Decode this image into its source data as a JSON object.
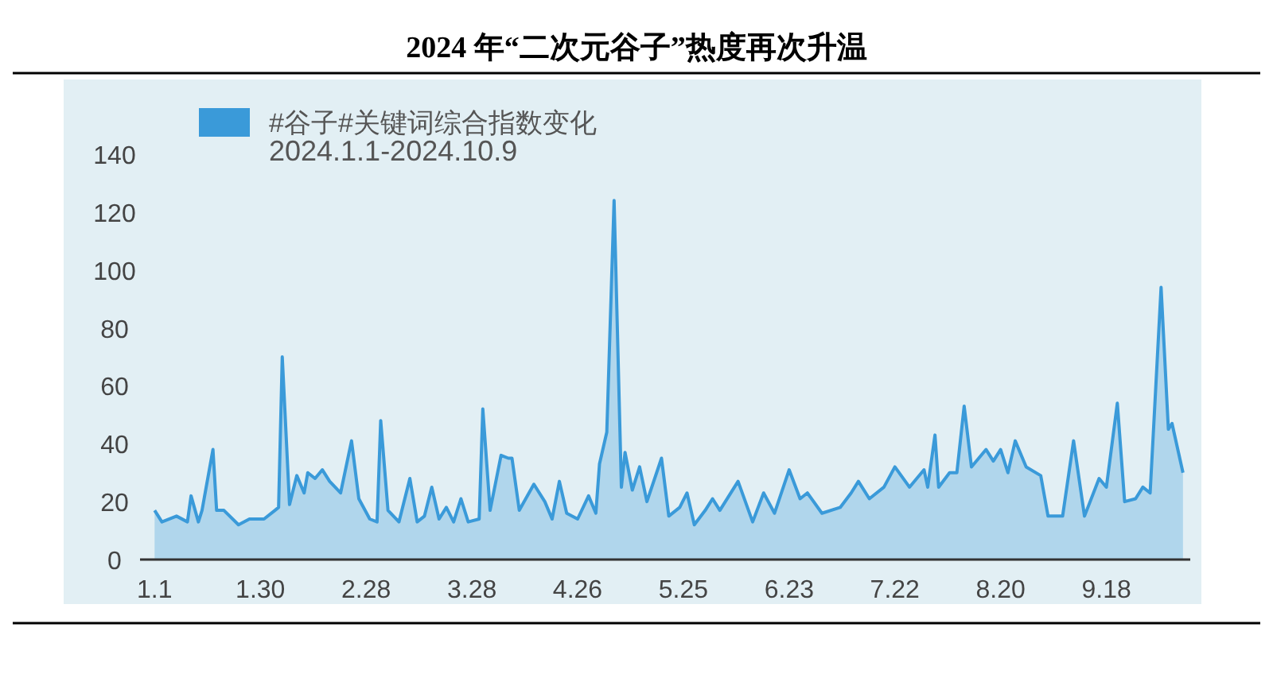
{
  "chart_data": {
    "type": "area",
    "title": "2024 年“二次元谷子”热度再次升温",
    "annotations": [
      "2024.1.1-2024.10.9"
    ],
    "legend": "top left",
    "x": [
      "2024-01-01",
      "2024-01-03",
      "2024-01-07",
      "2024-01-10",
      "2024-01-11",
      "2024-01-13",
      "2024-01-14",
      "2024-01-17",
      "2024-01-18",
      "2024-01-20",
      "2024-01-24",
      "2024-01-27",
      "2024-01-31",
      "2024-02-03",
      "2024-02-04",
      "2024-02-05",
      "2024-02-07",
      "2024-02-09",
      "2024-02-11",
      "2024-02-12",
      "2024-02-14",
      "2024-02-16",
      "2024-02-18",
      "2024-02-21",
      "2024-02-24",
      "2024-02-26",
      "2024-02-29",
      "2024-03-02",
      "2024-03-03",
      "2024-03-05",
      "2024-03-08",
      "2024-03-11",
      "2024-03-13",
      "2024-03-15",
      "2024-03-17",
      "2024-03-19",
      "2024-03-21",
      "2024-03-23",
      "2024-03-25",
      "2024-03-27",
      "2024-03-30",
      "2024-03-31",
      "2024-04-02",
      "2024-04-05",
      "2024-04-07",
      "2024-04-08",
      "2024-04-10",
      "2024-04-14",
      "2024-04-17",
      "2024-04-19",
      "2024-04-21",
      "2024-04-23",
      "2024-04-26",
      "2024-04-29",
      "2024-05-01",
      "2024-05-02",
      "2024-05-04",
      "2024-05-06",
      "2024-05-08",
      "2024-05-09",
      "2024-05-11",
      "2024-05-13",
      "2024-05-15",
      "2024-05-19",
      "2024-05-21",
      "2024-05-24",
      "2024-05-26",
      "2024-05-28",
      "2024-05-31",
      "2024-06-02",
      "2024-06-04",
      "2024-06-09",
      "2024-06-13",
      "2024-06-16",
      "2024-06-19",
      "2024-06-23",
      "2024-06-26",
      "2024-06-28",
      "2024-07-02",
      "2024-07-07",
      "2024-07-10",
      "2024-07-12",
      "2024-07-15",
      "2024-07-19",
      "2024-07-22",
      "2024-07-26",
      "2024-07-30",
      "2024-07-31",
      "2024-08-02",
      "2024-08-03",
      "2024-08-06",
      "2024-08-08",
      "2024-08-10",
      "2024-08-12",
      "2024-08-16",
      "2024-08-18",
      "2024-08-20",
      "2024-08-22",
      "2024-08-24",
      "2024-08-27",
      "2024-08-31",
      "2024-09-02",
      "2024-09-06",
      "2024-09-09",
      "2024-09-12",
      "2024-09-16",
      "2024-09-18",
      "2024-09-21",
      "2024-09-23",
      "2024-09-26",
      "2024-09-28",
      "2024-09-30",
      "2024-10-03",
      "2024-10-05",
      "2024-10-06",
      "2024-10-09"
    ],
    "series": [
      {
        "name": "#谷子#关键词综合指数变化",
        "color": "#3a9ad9",
        "values": [
          17,
          13,
          15,
          13,
          22,
          13,
          17,
          38,
          17,
          17,
          12,
          14,
          14,
          17,
          18,
          70,
          19,
          29,
          23,
          30,
          28,
          31,
          27,
          23,
          41,
          21,
          14,
          13,
          48,
          17,
          13,
          28,
          13,
          15,
          25,
          14,
          18,
          13,
          21,
          13,
          14,
          52,
          17,
          36,
          35,
          35,
          17,
          26,
          20,
          14,
          27,
          16,
          14,
          22,
          16,
          33,
          44,
          124,
          25,
          37,
          24,
          32,
          20,
          35,
          15,
          18,
          23,
          12,
          17,
          21,
          17,
          27,
          13,
          23,
          16,
          31,
          21,
          23,
          16,
          18,
          23,
          27,
          21,
          25,
          32,
          25,
          31,
          25,
          43,
          25,
          30,
          30,
          53,
          32,
          38,
          34,
          38,
          30,
          41,
          32,
          29,
          15,
          15,
          41,
          15,
          28,
          25,
          54,
          20,
          21,
          25,
          23,
          94,
          45,
          47,
          30
        ]
      }
    ],
    "xlim": [
      "2023-12-28",
      "2024-10-11"
    ],
    "xticks": [
      {
        "value": "2024-01-01",
        "label": "1.1"
      },
      {
        "value": "2024-01-30",
        "label": "1.30"
      },
      {
        "value": "2024-02-28",
        "label": "2.28"
      },
      {
        "value": "2024-03-28",
        "label": "3.28"
      },
      {
        "value": "2024-04-26",
        "label": "4.26"
      },
      {
        "value": "2024-05-25",
        "label": "5.25"
      },
      {
        "value": "2024-06-23",
        "label": "6.23"
      },
      {
        "value": "2024-07-22",
        "label": "7.22"
      },
      {
        "value": "2024-08-20",
        "label": "8.20"
      },
      {
        "value": "2024-09-18",
        "label": "9.18"
      }
    ],
    "ylim": [
      0,
      140
    ],
    "yticks": [
      0,
      20,
      40,
      60,
      80,
      100,
      120,
      140
    ]
  }
}
